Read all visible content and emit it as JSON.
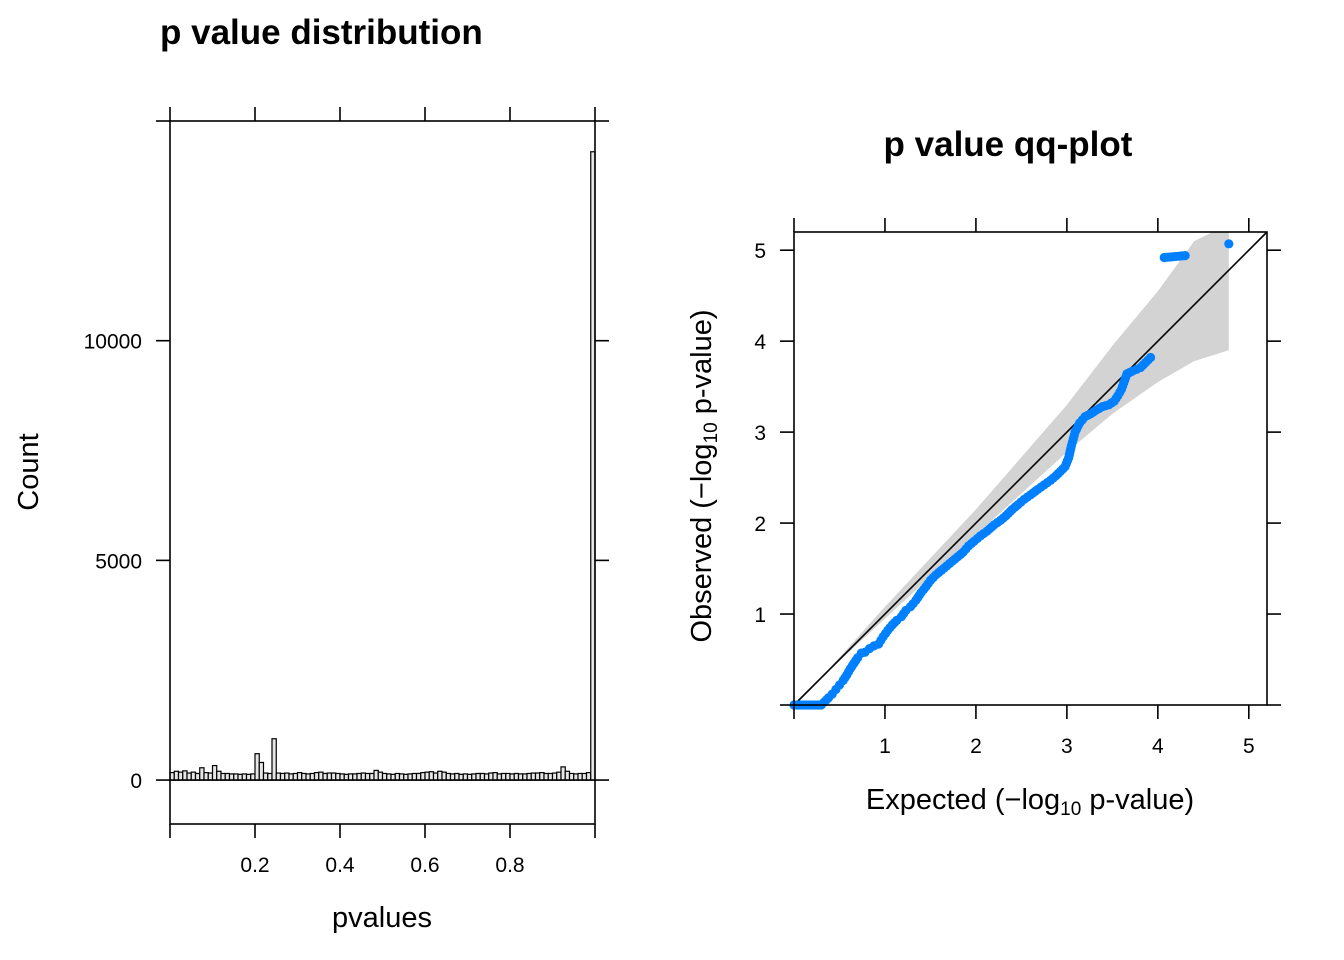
{
  "chart_data": [
    {
      "type": "bar",
      "title": "p value distribution",
      "xlabel": "pvalues",
      "ylabel": "Count",
      "xlim": [
        0,
        1
      ],
      "ylim": [
        -1000,
        15000
      ],
      "x_ticks": [
        0.2,
        0.4,
        0.6,
        0.8
      ],
      "x_tick_labels": [
        "0.2",
        "0.4",
        "0.6",
        "0.8"
      ],
      "y_ticks": [
        0,
        5000,
        10000
      ],
      "y_tick_labels": [
        "0",
        "5000",
        "10000"
      ],
      "bar_color": "#e6e6e6",
      "bins": 100,
      "bin_width": 0.01,
      "values": [
        170,
        200,
        180,
        210,
        160,
        180,
        150,
        280,
        170,
        160,
        330,
        200,
        150,
        150,
        140,
        140,
        130,
        140,
        130,
        140,
        600,
        400,
        160,
        150,
        940,
        160,
        150,
        160,
        140,
        150,
        170,
        150,
        140,
        150,
        170,
        180,
        150,
        160,
        160,
        150,
        140,
        130,
        140,
        140,
        150,
        160,
        150,
        150,
        220,
        180,
        150,
        140,
        130,
        150,
        140,
        130,
        140,
        150,
        150,
        170,
        180,
        190,
        160,
        200,
        180,
        150,
        140,
        150,
        130,
        140,
        130,
        140,
        150,
        150,
        140,
        160,
        170,
        140,
        150,
        150,
        140,
        150,
        140,
        140,
        150,
        160,
        160,
        170,
        150,
        150,
        160,
        180,
        300,
        200,
        150,
        140,
        150,
        150,
        170,
        14300
      ]
    },
    {
      "type": "scatter",
      "title": "p value qq-plot",
      "xlabel_parts": [
        "Expected (",
        "−",
        "log",
        "10",
        " p-value)"
      ],
      "ylabel_parts": [
        "Observed (",
        "−",
        "log",
        "10",
        " p-value)"
      ],
      "xlim": [
        0,
        5.2
      ],
      "ylim": [
        0,
        5.2
      ],
      "x_ticks": [
        1,
        2,
        3,
        4,
        5
      ],
      "x_tick_labels": [
        "1",
        "2",
        "3",
        "4",
        "5"
      ],
      "y_ticks": [
        1,
        2,
        3,
        4,
        5
      ],
      "y_tick_labels": [
        "1",
        "2",
        "3",
        "4",
        "5"
      ],
      "point_color": "#0080ff",
      "band_color": "#d3d3d3",
      "reference_line": "y = x",
      "points": [
        [
          0.0,
          0.0
        ],
        [
          0.1,
          0.0
        ],
        [
          0.2,
          0.0
        ],
        [
          0.3,
          0.0
        ],
        [
          0.33,
          0.03
        ],
        [
          0.38,
          0.08
        ],
        [
          0.42,
          0.12
        ],
        [
          0.46,
          0.17
        ],
        [
          0.5,
          0.22
        ],
        [
          0.54,
          0.27
        ],
        [
          0.58,
          0.33
        ],
        [
          0.62,
          0.4
        ],
        [
          0.66,
          0.46
        ],
        [
          0.7,
          0.52
        ],
        [
          0.74,
          0.57
        ],
        [
          0.78,
          0.58
        ],
        [
          0.83,
          0.62
        ],
        [
          0.88,
          0.65
        ],
        [
          0.93,
          0.67
        ],
        [
          0.98,
          0.75
        ],
        [
          1.03,
          0.82
        ],
        [
          1.08,
          0.88
        ],
        [
          1.13,
          0.93
        ],
        [
          1.18,
          0.97
        ],
        [
          1.23,
          1.04
        ],
        [
          1.28,
          1.08
        ],
        [
          1.34,
          1.15
        ],
        [
          1.4,
          1.24
        ],
        [
          1.45,
          1.3
        ],
        [
          1.5,
          1.37
        ],
        [
          1.56,
          1.43
        ],
        [
          1.62,
          1.48
        ],
        [
          1.68,
          1.53
        ],
        [
          1.74,
          1.58
        ],
        [
          1.8,
          1.63
        ],
        [
          1.86,
          1.68
        ],
        [
          1.92,
          1.75
        ],
        [
          1.98,
          1.8
        ],
        [
          2.05,
          1.86
        ],
        [
          2.12,
          1.91
        ],
        [
          2.2,
          1.98
        ],
        [
          2.27,
          2.03
        ],
        [
          2.33,
          2.08
        ],
        [
          2.4,
          2.15
        ],
        [
          2.46,
          2.2
        ],
        [
          2.53,
          2.26
        ],
        [
          2.6,
          2.31
        ],
        [
          2.68,
          2.37
        ],
        [
          2.75,
          2.42
        ],
        [
          2.82,
          2.47
        ],
        [
          2.88,
          2.52
        ],
        [
          2.93,
          2.57
        ],
        [
          2.98,
          2.62
        ],
        [
          3.02,
          2.72
        ],
        [
          3.05,
          2.85
        ],
        [
          3.09,
          3.0
        ],
        [
          3.14,
          3.1
        ],
        [
          3.2,
          3.17
        ],
        [
          3.26,
          3.2
        ],
        [
          3.32,
          3.24
        ],
        [
          3.39,
          3.28
        ],
        [
          3.46,
          3.3
        ],
        [
          3.52,
          3.34
        ],
        [
          3.56,
          3.4
        ],
        [
          3.6,
          3.47
        ],
        [
          3.66,
          3.64
        ],
        [
          3.72,
          3.67
        ],
        [
          3.81,
          3.71
        ],
        [
          3.92,
          3.82
        ],
        [
          4.07,
          4.92
        ],
        [
          4.3,
          4.94
        ],
        [
          4.78,
          5.07
        ]
      ],
      "band_upper": [
        [
          0.3,
          0.3
        ],
        [
          1.0,
          1.08
        ],
        [
          2.0,
          2.15
        ],
        [
          3.0,
          3.3
        ],
        [
          3.5,
          3.95
        ],
        [
          4.0,
          4.55
        ],
        [
          4.4,
          5.1
        ],
        [
          4.6,
          5.2
        ]
      ],
      "band_lower": [
        [
          0.3,
          0.3
        ],
        [
          1.0,
          0.95
        ],
        [
          2.0,
          1.87
        ],
        [
          3.0,
          2.78
        ],
        [
          3.5,
          3.2
        ],
        [
          4.0,
          3.55
        ],
        [
          4.4,
          3.78
        ],
        [
          4.78,
          3.9
        ]
      ]
    }
  ]
}
